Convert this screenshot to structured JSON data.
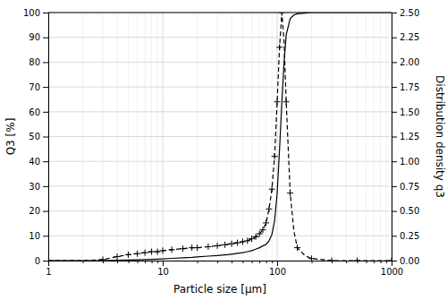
{
  "chart_data": {
    "type": "line",
    "xlabel": "Particle size [μm]",
    "ylabel": "Q3 [%]",
    "y2label": "Distribution density q3",
    "log": "x",
    "grid": true,
    "xlim": [
      1,
      1000
    ],
    "xticks": [
      1,
      10,
      100,
      1000
    ],
    "xticks_minor": [
      2,
      3,
      4,
      5,
      6,
      7,
      8,
      9,
      20,
      30,
      40,
      50,
      60,
      70,
      80,
      90,
      200,
      300,
      400,
      500,
      600,
      700,
      800,
      900
    ],
    "ylim": [
      0,
      100
    ],
    "yticks": [
      0,
      10,
      20,
      30,
      40,
      50,
      60,
      70,
      80,
      90,
      100
    ],
    "y2lim": [
      0,
      2.5
    ],
    "y2ticks": [
      {
        "value": 0,
        "label": "0.00"
      },
      0.25,
      {
        "value": 0.5,
        "label": "0.50"
      },
      0.75,
      {
        "value": 1,
        "label": "1.00"
      },
      1.25,
      {
        "value": 1.5,
        "label": "1.50"
      },
      1.75,
      {
        "value": 2,
        "label": "2.00"
      },
      2.25,
      {
        "value": 2.5,
        "label": "2.50"
      }
    ],
    "series": [
      {
        "type": "line",
        "axis": "y",
        "color": "#000000",
        "line_style": "solid",
        "x": [
          1,
          2,
          3,
          4,
          5,
          6,
          7,
          8,
          9,
          10,
          12,
          15,
          18,
          20,
          25,
          30,
          35,
          40,
          45,
          50,
          55,
          60,
          65,
          70,
          75,
          80,
          85,
          90,
          95,
          100,
          105,
          110,
          115,
          120,
          130,
          140,
          150,
          175,
          200,
          250,
          300,
          500,
          1000
        ],
        "values": [
          0,
          0.0,
          0.0,
          0.1,
          0.2,
          0.3,
          0.4,
          0.5,
          0.6,
          0.7,
          0.9,
          1.1,
          1.3,
          1.5,
          1.8,
          2.0,
          2.3,
          2.6,
          2.9,
          3.2,
          3.6,
          4.0,
          4.6,
          5.2,
          5.9,
          6.5,
          8.0,
          10.5,
          16.0,
          27.0,
          45.0,
          64.0,
          80.0,
          91.0,
          97.5,
          99.0,
          99.5,
          99.8,
          100.0,
          100.0,
          100.0,
          100.0,
          100.0
        ]
      },
      {
        "type": "line",
        "axis": "y2",
        "color": "#000000",
        "line_style": "dashed",
        "x": [
          1,
          2,
          3,
          4,
          5,
          6,
          7,
          8,
          9,
          10,
          12,
          15,
          18,
          20,
          25,
          30,
          35,
          40,
          45,
          50,
          55,
          60,
          65,
          70,
          75,
          80,
          85,
          90,
          95,
          100,
          105,
          110,
          115,
          120,
          130,
          140,
          150,
          175,
          200,
          250,
          300,
          500,
          1000
        ],
        "values": [
          0.0,
          0.0,
          0.01,
          0.04,
          0.06,
          0.07,
          0.08,
          0.09,
          0.09,
          0.1,
          0.11,
          0.12,
          0.13,
          0.13,
          0.14,
          0.15,
          0.16,
          0.17,
          0.18,
          0.19,
          0.2,
          0.22,
          0.24,
          0.27,
          0.31,
          0.38,
          0.52,
          0.72,
          1.05,
          1.6,
          2.15,
          2.5,
          2.2,
          1.6,
          0.68,
          0.3,
          0.13,
          0.05,
          0.02,
          0.01,
          0.0,
          0.0,
          0.0
        ]
      },
      {
        "type": "scatter",
        "axis": "y2",
        "color": "#000000",
        "marker": "plus",
        "x": [
          3,
          4,
          5,
          6,
          7,
          8,
          9,
          10,
          12,
          15,
          18,
          20,
          25,
          30,
          35,
          40,
          45,
          50,
          55,
          60,
          65,
          70,
          75,
          80,
          85,
          90,
          95,
          100,
          105,
          110,
          120,
          130,
          150,
          200,
          300,
          500,
          1000
        ],
        "values": [
          0.01,
          0.04,
          0.06,
          0.07,
          0.08,
          0.09,
          0.09,
          0.1,
          0.11,
          0.12,
          0.13,
          0.13,
          0.14,
          0.15,
          0.16,
          0.17,
          0.18,
          0.19,
          0.2,
          0.22,
          0.24,
          0.27,
          0.31,
          0.38,
          0.52,
          0.72,
          1.05,
          1.6,
          2.15,
          2.5,
          1.6,
          0.68,
          0.13,
          0.02,
          0.0,
          0.0,
          0.0
        ]
      }
    ]
  }
}
